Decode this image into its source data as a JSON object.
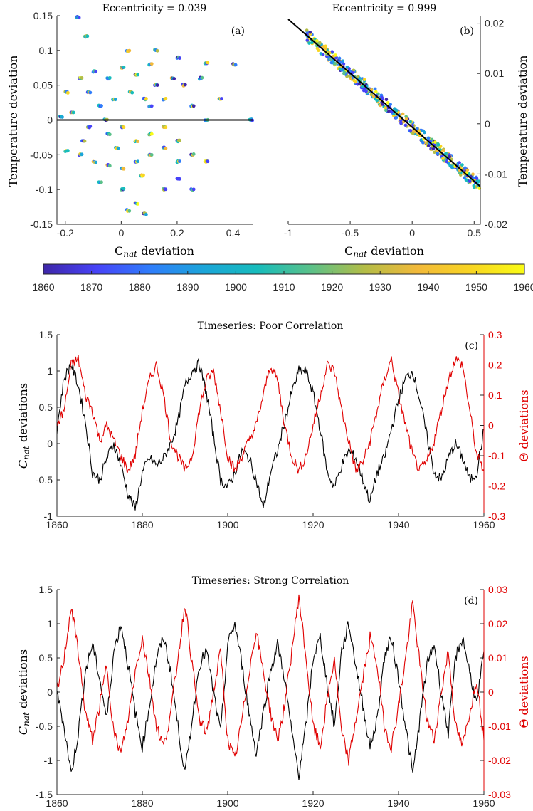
{
  "chart_data": [
    {
      "id": "a",
      "type": "scatter",
      "title": "Eccentricity = 0.039",
      "panel_label": "(a)",
      "xlabel": "C_nat deviation",
      "ylabel": "Temperature deviation",
      "xlim": [
        -0.23,
        0.47
      ],
      "ylim": [
        -0.15,
        0.15
      ],
      "xticks": [
        -0.2,
        0,
        0.2,
        0.4
      ],
      "xtick_labels": [
        "-0.2",
        "0",
        "0.2",
        "0.4"
      ],
      "yticks": [
        -0.15,
        -0.1,
        -0.05,
        0,
        0.05,
        0.1,
        0.15
      ],
      "ytick_labels": [
        "-0.15",
        "-0.1",
        "-0.05",
        "0",
        "0.05",
        "0.1",
        "0.15"
      ],
      "fit_line": {
        "x": [
          -0.23,
          0.47
        ],
        "y": [
          0,
          0
        ]
      },
      "points": [
        [
          -0.16,
          0.148
        ],
        [
          -0.13,
          0.12
        ],
        [
          -0.2,
          0.04
        ],
        [
          -0.15,
          0.06
        ],
        [
          -0.1,
          0.07
        ],
        [
          -0.05,
          0.06
        ],
        [
          0.0,
          0.075
        ],
        [
          0.05,
          0.065
        ],
        [
          0.1,
          0.08
        ],
        [
          0.02,
          0.1
        ],
        [
          0.12,
          0.1
        ],
        [
          0.2,
          0.09
        ],
        [
          0.3,
          0.082
        ],
        [
          0.4,
          0.08
        ],
        [
          0.08,
          0.03
        ],
        [
          -0.08,
          0.02
        ],
        [
          -0.18,
          0.01
        ],
        [
          -0.22,
          0.005
        ],
        [
          -0.12,
          -0.01
        ],
        [
          -0.05,
          -0.02
        ],
        [
          0.0,
          -0.01
        ],
        [
          0.05,
          -0.03
        ],
        [
          0.1,
          -0.02
        ],
        [
          0.15,
          -0.01
        ],
        [
          0.2,
          -0.03
        ],
        [
          0.25,
          0.02
        ],
        [
          0.3,
          0.0
        ],
        [
          0.35,
          0.03
        ],
        [
          0.46,
          0.0
        ],
        [
          -0.2,
          -0.045
        ],
        [
          -0.15,
          -0.05
        ],
        [
          -0.1,
          -0.06
        ],
        [
          -0.05,
          -0.065
        ],
        [
          0.0,
          -0.07
        ],
        [
          0.05,
          -0.06
        ],
        [
          0.1,
          -0.05
        ],
        [
          0.15,
          -0.04
        ],
        [
          0.2,
          -0.06
        ],
        [
          0.25,
          -0.05
        ],
        [
          -0.08,
          -0.09
        ],
        [
          0.0,
          -0.1
        ],
        [
          0.05,
          -0.12
        ],
        [
          0.02,
          -0.13
        ],
        [
          0.08,
          -0.135
        ],
        [
          0.15,
          -0.1
        ],
        [
          0.25,
          -0.1
        ],
        [
          0.2,
          -0.085
        ],
        [
          -0.03,
          0.03
        ],
        [
          0.03,
          0.04
        ],
        [
          -0.12,
          0.04
        ],
        [
          0.12,
          0.05
        ],
        [
          0.18,
          0.06
        ],
        [
          0.07,
          -0.08
        ],
        [
          -0.02,
          -0.04
        ],
        [
          0.1,
          0.02
        ],
        [
          -0.06,
          0.0
        ],
        [
          0.15,
          0.03
        ],
        [
          0.22,
          0.05
        ],
        [
          0.28,
          0.06
        ],
        [
          -0.14,
          -0.03
        ],
        [
          0.3,
          -0.06
        ]
      ]
    },
    {
      "id": "b",
      "type": "scatter",
      "title": "Eccentricity = 0.999",
      "panel_label": "(b)",
      "xlabel": "C_nat deviation",
      "ylabel": "Temperature deviation",
      "xlim": [
        -1.0,
        0.55
      ],
      "ylim": [
        -0.02,
        0.0215
      ],
      "xticks": [
        -1,
        -0.5,
        0,
        0.5
      ],
      "xtick_labels": [
        "-1",
        "-0.5",
        "0",
        "0.5"
      ],
      "yticks": [
        -0.02,
        -0.01,
        0,
        0.01,
        0.02
      ],
      "ytick_labels": [
        "-0.02",
        "-0.01",
        "0",
        "0.01",
        "0.02"
      ],
      "fit_line": {
        "x": [
          -1.0,
          0.55
        ],
        "y": [
          0.0208,
          -0.0125
        ]
      },
      "points_along_line": {
        "x_from": -0.85,
        "x_to": 0.55,
        "scatter": 0.0012
      }
    },
    {
      "type": "colorbar",
      "range": [
        1860,
        1960
      ],
      "ticks": [
        1860,
        1870,
        1880,
        1890,
        1900,
        1910,
        1920,
        1930,
        1940,
        1950,
        1960
      ],
      "tick_labels": [
        "1860",
        "1870",
        "1880",
        "1890",
        "1900",
        "1910",
        "1920",
        "1930",
        "1940",
        "1950",
        "1960"
      ],
      "colormap": [
        "#3e26a8",
        "#4743f8",
        "#2f7dfb",
        "#1ba5d9",
        "#17bcbc",
        "#5ac189",
        "#b3bd47",
        "#f2b93a",
        "#f8d522",
        "#f9fb15"
      ]
    },
    {
      "id": "c",
      "type": "line",
      "title": "Timeseries: Poor Correlation",
      "panel_label": "(c)",
      "xlabel": "",
      "ylabel_left": "C_nat deviations",
      "ylabel_right": "Θ deviations",
      "xlim": [
        1860,
        1960
      ],
      "ylim_left": [
        -1,
        1.5
      ],
      "ylim_right": [
        -0.3,
        0.3
      ],
      "xticks": [
        1860,
        1880,
        1900,
        1920,
        1940,
        1960
      ],
      "xtick_labels": [
        "1860",
        "1880",
        "1900",
        "1920",
        "1940",
        "1960"
      ],
      "yticks_left": [
        -1,
        -0.5,
        0,
        0.5,
        1,
        1.5
      ],
      "ytick_labels_left": [
        "-1",
        "-0.5",
        "0",
        "0.5",
        "1",
        "1.5"
      ],
      "yticks_right": [
        -0.3,
        -0.2,
        -0.1,
        0,
        0.1,
        0.2,
        0.3
      ],
      "ytick_labels_right": [
        "-0.3",
        "-0.2",
        "-0.1",
        "0",
        "0.1",
        "0.2",
        "0.3"
      ],
      "series": [
        {
          "color": "#000000",
          "axis": "left",
          "values": [
            0.2,
            0.9,
            1.1,
            0.8,
            0.3,
            -0.4,
            -0.5,
            -0.2,
            0.0,
            -0.3,
            -0.7,
            -0.9,
            -0.4,
            -0.2,
            -0.3,
            -0.2,
            0.0,
            0.3,
            0.8,
            1.0,
            1.1,
            0.7,
            0.1,
            -0.5,
            -0.6,
            -0.4,
            -0.1,
            -0.2,
            -0.5,
            -0.9,
            -0.4,
            -0.1,
            0.3,
            0.7,
            1.0,
            1.0,
            0.7,
            0.2,
            -0.4,
            -0.6,
            -0.3,
            -0.1,
            -0.2,
            -0.5,
            -0.8,
            -0.4,
            -0.2,
            0.2,
            0.6,
            0.9,
            1.0,
            0.6,
            0.1,
            -0.4,
            -0.5,
            -0.2,
            0.0,
            -0.2,
            -0.5,
            -0.4,
            0.2
          ]
        },
        {
          "color": "#e00000",
          "axis": "right",
          "values": [
            0.0,
            0.05,
            0.2,
            0.22,
            0.1,
            0.05,
            -0.05,
            0.0,
            -0.05,
            -0.1,
            -0.15,
            -0.1,
            0.05,
            0.15,
            0.2,
            0.1,
            -0.05,
            -0.1,
            -0.15,
            -0.1,
            0.05,
            0.15,
            0.18,
            0.05,
            -0.1,
            -0.15,
            -0.1,
            -0.05,
            0.0,
            0.1,
            0.2,
            0.15,
            0.0,
            -0.1,
            -0.15,
            -0.1,
            0.0,
            0.1,
            0.2,
            0.18,
            0.05,
            -0.05,
            -0.15,
            -0.12,
            -0.05,
            0.05,
            0.15,
            0.22,
            0.1,
            0.0,
            -0.1,
            -0.15,
            -0.12,
            -0.05,
            0.05,
            0.15,
            0.22,
            0.2,
            0.05,
            -0.1,
            -0.15
          ]
        }
      ]
    },
    {
      "id": "d",
      "type": "line",
      "title": "Timeseries: Strong Correlation",
      "panel_label": "(d)",
      "xlabel": "",
      "ylabel_left": "C_nat deviations",
      "ylabel_right": "Θ deviations",
      "xlim": [
        1860,
        1960
      ],
      "ylim_left": [
        -1.5,
        1.5
      ],
      "ylim_right": [
        -0.03,
        0.03
      ],
      "xticks": [
        1860,
        1880,
        1900,
        1920,
        1940,
        1960
      ],
      "xtick_labels": [
        "1860",
        "1880",
        "1900",
        "1920",
        "1940",
        "1960"
      ],
      "yticks_left": [
        -1.5,
        -1,
        -0.5,
        0,
        0.5,
        1,
        1.5
      ],
      "ytick_labels_left": [
        "-1.5",
        "-1",
        "-0.5",
        "0",
        "0.5",
        "1",
        "1.5"
      ],
      "yticks_right": [
        -0.03,
        -0.02,
        -0.01,
        0,
        0.01,
        0.02,
        0.03
      ],
      "ytick_labels_right": [
        "-0.03",
        "-0.02",
        "-0.01",
        "0",
        "0.01",
        "0.02",
        "0.03"
      ],
      "series": [
        {
          "color": "#000000",
          "axis": "left",
          "values": [
            0.0,
            -0.5,
            -1.2,
            -0.6,
            0.3,
            0.7,
            0.2,
            -0.4,
            0.6,
            1.0,
            0.4,
            -0.3,
            -0.8,
            -0.2,
            0.5,
            0.8,
            0.3,
            -0.5,
            -1.2,
            -0.4,
            0.4,
            0.6,
            0.0,
            -0.6,
            0.7,
            1.0,
            0.4,
            -0.3,
            -0.9,
            -0.3,
            0.3,
            0.7,
            0.2,
            -0.6,
            -1.2,
            -0.5,
            0.5,
            0.8,
            0.1,
            -0.5,
            0.6,
            1.0,
            0.4,
            -0.2,
            -0.8,
            -0.4,
            0.5,
            0.8,
            0.2,
            -0.5,
            -1.2,
            -0.4,
            0.4,
            0.7,
            0.0,
            -0.6,
            0.5,
            0.8,
            0.3,
            -0.2,
            0.6
          ]
        },
        {
          "color": "#e00000",
          "axis": "right",
          "values": [
            0.0,
            0.01,
            0.025,
            0.012,
            -0.006,
            -0.014,
            -0.004,
            0.008,
            -0.012,
            -0.018,
            -0.008,
            0.006,
            0.016,
            0.004,
            -0.01,
            -0.016,
            -0.006,
            0.01,
            0.026,
            0.008,
            -0.008,
            -0.012,
            0.0,
            0.012,
            -0.014,
            -0.02,
            -0.008,
            0.006,
            0.018,
            0.006,
            -0.006,
            -0.014,
            -0.004,
            0.012,
            0.028,
            0.01,
            -0.01,
            -0.016,
            -0.002,
            0.01,
            -0.012,
            -0.02,
            -0.008,
            0.004,
            0.016,
            0.008,
            -0.01,
            -0.016,
            -0.004,
            0.01,
            0.026,
            0.008,
            -0.008,
            -0.014,
            0.0,
            0.012,
            -0.01,
            -0.016,
            -0.006,
            0.004,
            -0.014
          ]
        }
      ]
    }
  ]
}
